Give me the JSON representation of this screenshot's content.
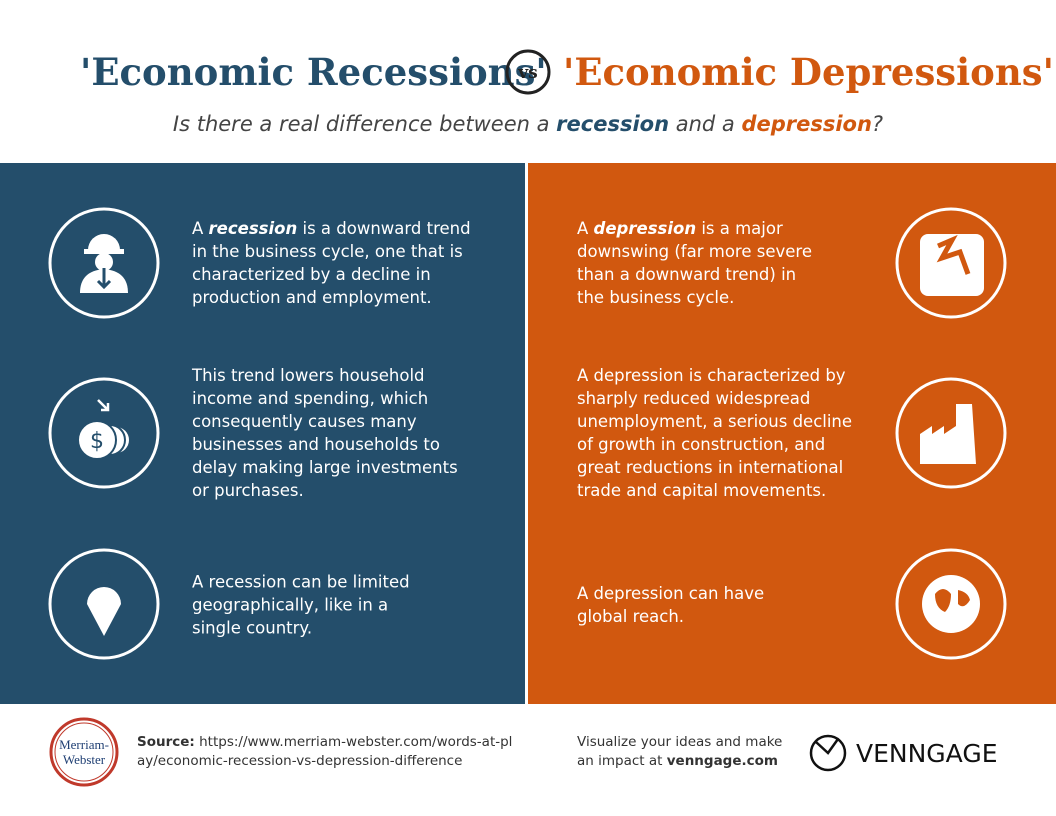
{
  "header": {
    "title_left": "'Economic Recessions'",
    "vs": "vs",
    "title_right": "'Economic Depressions'",
    "subtitle": [
      "Is there a real difference between a ",
      "recession",
      " and a ",
      "depression",
      "?"
    ]
  },
  "left": [
    {
      "parts": [
        "A ",
        "recession",
        " is a downward trend in the business cycle, one that is characterized by a decline in production and employment."
      ]
    },
    {
      "parts": [
        "This trend lowers household income and spending, which consequently causes many businesses and households to delay making large investments or purchases."
      ]
    },
    {
      "parts": [
        "A recession can be limited geographically, like in a single country."
      ]
    }
  ],
  "right": [
    {
      "parts": [
        "A ",
        "depression",
        " is a major downswing (far more severe than a downward trend) in the business cycle."
      ]
    },
    {
      "parts": [
        "A depression is characterized by sharply reduced widespread unemployment, a serious decline of growth in construction, and great reductions in international trade and capital movements."
      ]
    },
    {
      "parts": [
        "A depression can have global reach."
      ]
    }
  ],
  "footer": {
    "logo": [
      "Merriam-",
      "Webster"
    ],
    "source_label": "Source:",
    "source_url": "https://www.merriam-webster.com/words-at-play/economic-recession-vs-depression-difference",
    "tagline": "Visualize your ideas and make an impact at ",
    "tagline_link": "venngage.com",
    "brand": "VENNGAGE"
  }
}
